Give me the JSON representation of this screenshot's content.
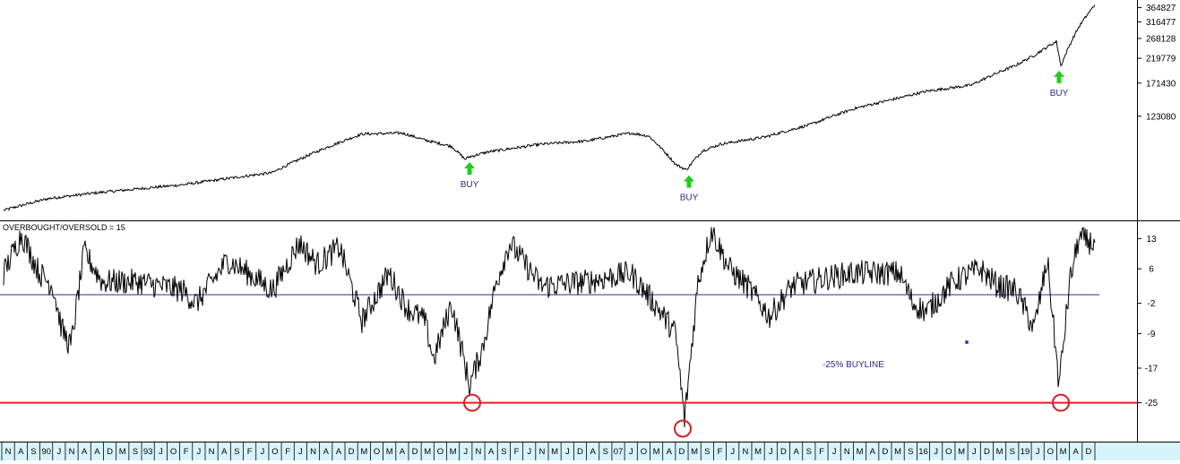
{
  "window": {
    "background": "#ffffff",
    "axis_background": "#d8f4fb"
  },
  "chart_data": [
    {
      "type": "line",
      "panel": "price",
      "y_scale": "log",
      "y_tick_labels": [
        "364827",
        "316477",
        "268128",
        "219779",
        "171430",
        "123080"
      ],
      "y_tick_values": [
        364827,
        316477,
        268128,
        219779,
        171430,
        123080
      ],
      "series": [
        {
          "color": "#000000",
          "index": [
            0,
            50,
            100,
            200,
            300,
            400,
            445,
            470,
            500,
            515,
            520,
            540,
            600,
            650,
            700,
            720,
            750,
            762,
            780,
            800,
            850,
            900,
            950,
            1000,
            1030,
            1080,
            1100,
            1130,
            1150,
            1175,
            1180,
            1200,
            1218
          ],
          "values": [
            48000,
            54000,
            57000,
            62000,
            70000,
            103000,
            104000,
            97000,
            91000,
            80000,
            82000,
            86000,
            93000,
            96000,
            104000,
            101000,
            76000,
            72000,
            87000,
            93000,
            100000,
            113000,
            133000,
            148000,
            158000,
            168000,
            183000,
            205000,
            226000,
            260000,
            203000,
            300000,
            375000
          ]
        }
      ],
      "annotations": [
        {
          "text": "BUY",
          "color": "#2b2b8a",
          "arrow_color": "#22cc22",
          "at_index": 520,
          "value": 82000
        },
        {
          "text": "BUY",
          "color": "#2b2b8a",
          "arrow_color": "#22cc22",
          "at_index": 765,
          "value": 72000
        },
        {
          "text": "BUY",
          "color": "#2b2b8a",
          "arrow_color": "#22cc22",
          "at_index": 1178,
          "value": 205000
        }
      ]
    },
    {
      "type": "line",
      "panel": "oscillator",
      "title": "OVERBOUGHT/OVERSOLD = 15",
      "ylim": [
        -34,
        17
      ],
      "y_tick_labels": [
        "13",
        "6",
        "-2",
        "-9",
        "-17",
        "-25"
      ],
      "y_tick_values": [
        13,
        6,
        -2,
        -9,
        -17,
        -25
      ],
      "reference_lines": [
        {
          "value": 0,
          "color": "#2b2ba0"
        },
        {
          "value": -25,
          "color": "#e02020"
        }
      ],
      "buyline_label": {
        "text": "-25% BUYLINE",
        "color": "#2b2b8a"
      },
      "series": [
        {
          "color": "#000000",
          "index": [
            0,
            20,
            40,
            55,
            65,
            75,
            90,
            110,
            150,
            200,
            215,
            250,
            280,
            300,
            330,
            350,
            375,
            400,
            430,
            450,
            470,
            480,
            500,
            520,
            535,
            550,
            565,
            600,
            650,
            700,
            730,
            750,
            760,
            775,
            790,
            810,
            830,
            855,
            880,
            920,
            950,
            1000,
            1015,
            1030,
            1060,
            1090,
            1110,
            1130,
            1150,
            1165,
            1178,
            1190,
            1200,
            1215
          ],
          "values": [
            5,
            14,
            5,
            2,
            -8,
            -12,
            10,
            3,
            3,
            1,
            -2,
            8,
            4,
            1,
            12,
            7,
            11,
            -6,
            5,
            -3,
            -6,
            -15,
            -2,
            -21,
            -12,
            3,
            12,
            2,
            3,
            5,
            -3,
            -9,
            -29,
            3,
            15,
            6,
            2,
            -5,
            2,
            4,
            5,
            5,
            -2,
            -4,
            3,
            6,
            2,
            1,
            -8,
            8,
            -21,
            3,
            13,
            12
          ]
        }
      ],
      "circle_markers": [
        {
          "at_index": 523,
          "value": -25
        },
        {
          "at_index": 758,
          "value": -31
        },
        {
          "at_index": 1180,
          "value": -25
        }
      ],
      "extra_points": [
        {
          "at_index": 1075,
          "value": -11,
          "color": "#3a3ac0"
        }
      ]
    }
  ],
  "time_axis": {
    "labels": [
      "N",
      "A",
      "S",
      "90",
      "J",
      "N",
      "A",
      "A",
      "D",
      "M",
      "S",
      "93",
      "J",
      "O",
      "F",
      "J",
      "N",
      "A",
      "S",
      "F",
      "J",
      "O",
      "F",
      "J",
      "N",
      "A",
      "A",
      "D",
      "M",
      "O",
      "M",
      "A",
      "D",
      "M",
      "O",
      "M",
      "J",
      "N",
      "A",
      "S",
      "F",
      "J",
      "N",
      "M",
      "J",
      "D",
      "A",
      "S",
      "07",
      "J",
      "O",
      "M",
      "A",
      "D",
      "M",
      "S",
      "F",
      "J",
      "N",
      "M",
      "J",
      "D",
      "A",
      "S",
      "F",
      "J",
      "N",
      "M",
      "A",
      "D",
      "M",
      "S",
      "16",
      "J",
      "O",
      "M",
      "J",
      "D",
      "M",
      "S",
      "19",
      "J",
      "O",
      "M",
      "A",
      "D"
    ]
  }
}
